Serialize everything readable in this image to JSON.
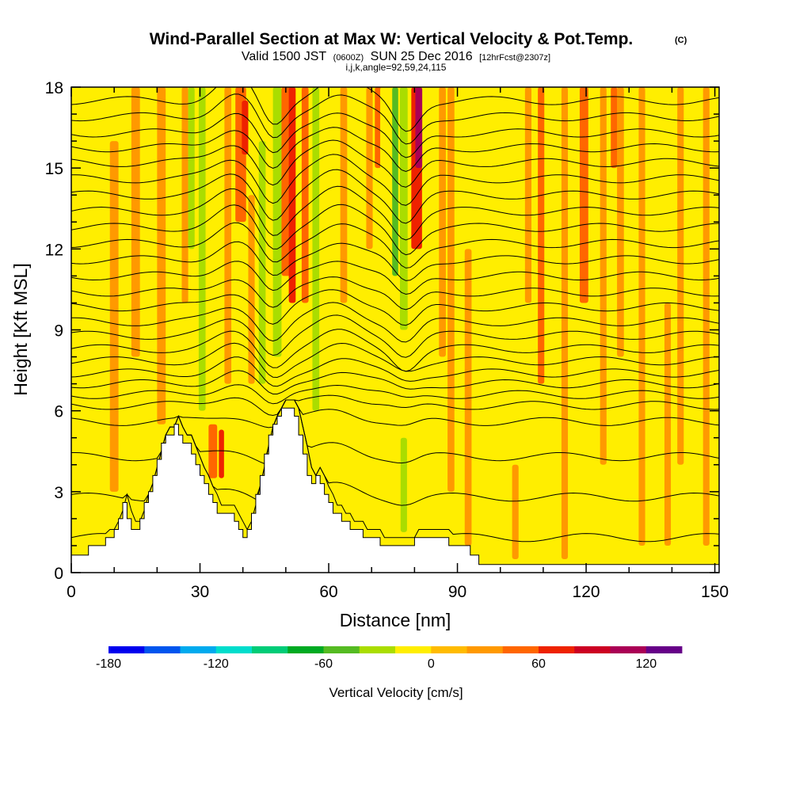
{
  "chart_data": {
    "type": "contour",
    "title": "Wind-Parallel Section at Max W: Vertical Velocity & Pot.Temp.",
    "title_mark": "(C)",
    "subtitle": {
      "valid": "Valid 1500 JST",
      "utc": "(0600Z)",
      "date": "SUN 25 Dec 2016",
      "forecast": "[12hrFcst@2307z]"
    },
    "section_info": "i,j,k,angle=92,59,24,115",
    "x_axis": {
      "label": "Distance [nm]",
      "range": [
        0,
        151
      ],
      "ticks": [
        0,
        30,
        60,
        90,
        120,
        150
      ],
      "tick_labels": [
        "0",
        "30",
        "60",
        "90",
        "120",
        "150"
      ]
    },
    "y_axis": {
      "label": "Height [Kft MSL]",
      "range": [
        0,
        18
      ],
      "ticks": [
        0,
        3,
        6,
        9,
        12,
        15,
        18
      ],
      "tick_labels": [
        "0",
        "3",
        "6",
        "9",
        "12",
        "15",
        "18"
      ]
    },
    "terrain_kft": {
      "x": [
        0,
        4,
        4,
        8,
        8,
        10,
        10,
        11,
        11,
        12,
        12,
        13,
        13,
        14,
        14,
        15,
        15,
        16,
        16,
        17,
        17,
        18,
        18,
        19,
        19,
        20,
        20,
        21,
        21,
        22,
        22,
        23,
        23,
        24,
        24,
        25,
        25,
        26,
        26,
        27,
        27,
        28,
        28,
        29,
        29,
        30,
        30,
        31,
        31,
        32,
        32,
        33,
        33,
        34,
        34,
        35,
        35,
        36,
        36,
        37,
        37,
        38,
        38,
        39,
        39,
        40,
        40,
        41,
        41,
        42,
        42,
        43,
        43,
        44,
        44,
        45,
        45,
        46,
        46,
        47,
        47,
        48,
        48,
        49,
        49,
        50,
        50,
        51,
        51,
        52,
        52,
        53,
        53,
        54,
        54,
        55,
        55,
        56,
        56,
        57,
        57,
        58,
        58,
        59,
        59,
        60,
        60,
        61,
        61,
        62,
        62,
        63,
        63,
        64,
        64,
        65,
        65,
        66,
        66,
        67,
        67,
        68,
        68,
        69,
        69,
        70,
        70,
        71,
        71,
        72,
        72,
        73,
        73,
        74,
        74,
        78,
        78,
        80,
        80,
        85,
        85,
        88,
        88,
        93,
        93,
        95,
        95,
        96,
        96,
        100,
        100,
        151
      ],
      "y": [
        0.65,
        0.65,
        1.0,
        1.0,
        1.3,
        1.3,
        1.6,
        1.6,
        2.0,
        2.0,
        2.6,
        2.6,
        2.0,
        2.0,
        1.6,
        1.6,
        1.6,
        1.6,
        2.0,
        2.0,
        2.6,
        2.6,
        3.0,
        3.0,
        3.6,
        3.6,
        4.2,
        4.2,
        4.8,
        4.8,
        5.1,
        5.1,
        5.1,
        5.1,
        5.5,
        5.5,
        5.1,
        5.1,
        4.8,
        4.8,
        4.8,
        4.8,
        4.4,
        4.4,
        4.0,
        4.0,
        3.6,
        3.6,
        3.3,
        3.3,
        2.9,
        2.9,
        2.6,
        2.6,
        2.2,
        2.2,
        2.2,
        2.2,
        2.2,
        2.2,
        2.2,
        2.2,
        1.9,
        1.9,
        1.6,
        1.6,
        1.3,
        1.3,
        1.6,
        1.6,
        2.2,
        2.2,
        2.9,
        2.9,
        3.6,
        3.6,
        4.4,
        4.4,
        5.1,
        5.1,
        5.5,
        5.5,
        5.8,
        5.8,
        6.1,
        6.1,
        6.1,
        6.1,
        6.1,
        6.1,
        5.8,
        5.8,
        5.1,
        5.1,
        4.4,
        4.4,
        3.6,
        3.6,
        3.3,
        3.3,
        3.6,
        3.6,
        3.3,
        3.3,
        2.9,
        2.9,
        2.6,
        2.6,
        2.2,
        2.2,
        2.2,
        2.2,
        1.9,
        1.9,
        1.9,
        1.9,
        1.6,
        1.6,
        1.6,
        1.6,
        1.6,
        1.6,
        1.3,
        1.3,
        1.3,
        1.3,
        1.3,
        1.3,
        1.3,
        1.3,
        1.0,
        1.0,
        1.0,
        1.0,
        1.0,
        1.0,
        1.0,
        1.0,
        1.3,
        1.3,
        1.3,
        1.3,
        1.0,
        1.0,
        0.65,
        0.65,
        0.3,
        0.3,
        0.3,
        0.3,
        0.3,
        0.3
      ]
    },
    "vertical_velocity_bands": [
      {
        "x": 10,
        "w": 2,
        "value": 20,
        "y0": 3,
        "y1": 16
      },
      {
        "x": 15,
        "w": 2,
        "value": 20,
        "y0": 8,
        "y1": 18
      },
      {
        "x": 21,
        "w": 2,
        "value": 20,
        "y0": 5.5,
        "y1": 18
      },
      {
        "x": 26.5,
        "w": 1.5,
        "value": 20,
        "y0": 10,
        "y1": 18
      },
      {
        "x": 28,
        "w": 1.5,
        "value": -40,
        "y0": 12,
        "y1": 18
      },
      {
        "x": 30.5,
        "w": 1.6,
        "value": -40,
        "y0": 6,
        "y1": 18
      },
      {
        "x": 33,
        "w": 2,
        "value": 40,
        "y0": 3.5,
        "y1": 5.5
      },
      {
        "x": 35,
        "w": 1.2,
        "value": 60,
        "y0": 3.5,
        "y1": 5.3
      },
      {
        "x": 36.5,
        "w": 1.6,
        "value": 20,
        "y0": 7,
        "y1": 18
      },
      {
        "x": 39.5,
        "w": 2.5,
        "value": 40,
        "y0": 13,
        "y1": 18
      },
      {
        "x": 40.5,
        "w": 1.5,
        "value": 60,
        "y0": 15.5,
        "y1": 17.5
      },
      {
        "x": 42,
        "w": 1.5,
        "value": 20,
        "y0": 7,
        "y1": 14
      },
      {
        "x": 44.5,
        "w": 1.6,
        "value": -40,
        "y0": 7,
        "y1": 16
      },
      {
        "x": 48,
        "w": 2,
        "value": -40,
        "y0": 8,
        "y1": 18
      },
      {
        "x": 50.5,
        "w": 3,
        "value": 40,
        "y0": 11,
        "y1": 18
      },
      {
        "x": 51.5,
        "w": 1.6,
        "value": 60,
        "y0": 10,
        "y1": 18
      },
      {
        "x": 54.5,
        "w": 1.6,
        "value": 40,
        "y0": 10,
        "y1": 18
      },
      {
        "x": 57,
        "w": 1.6,
        "value": -40,
        "y0": 6,
        "y1": 18
      },
      {
        "x": 60.5,
        "w": 1.8,
        "value": -20,
        "y0": 3,
        "y1": 18
      },
      {
        "x": 63.5,
        "w": 1.6,
        "value": 20,
        "y0": 10,
        "y1": 18
      },
      {
        "x": 66.5,
        "w": 1.6,
        "value": -20,
        "y0": 10,
        "y1": 18
      },
      {
        "x": 69.5,
        "w": 1.5,
        "value": 20,
        "y0": 12,
        "y1": 18
      },
      {
        "x": 71.5,
        "w": 1.5,
        "value": 40,
        "y0": 15,
        "y1": 18
      },
      {
        "x": 73,
        "w": 2,
        "value": -20,
        "y0": 8,
        "y1": 18
      },
      {
        "x": 75.5,
        "w": 1.4,
        "value": -60,
        "y0": 11,
        "y1": 18
      },
      {
        "x": 77.5,
        "w": 1.8,
        "value": -40,
        "y0": 9,
        "y1": 18
      },
      {
        "x": 77.5,
        "w": 1.5,
        "value": -40,
        "y0": 1.5,
        "y1": 5
      },
      {
        "x": 80.5,
        "w": 2.5,
        "value": 60,
        "y0": 12,
        "y1": 18
      },
      {
        "x": 81,
        "w": 1.6,
        "value": 100,
        "y0": 15,
        "y1": 18
      },
      {
        "x": 84,
        "w": 1.6,
        "value": -20,
        "y0": 12,
        "y1": 18
      },
      {
        "x": 86.5,
        "w": 1.6,
        "value": 20,
        "y0": 8,
        "y1": 18
      },
      {
        "x": 88.5,
        "w": 1.6,
        "value": 20,
        "y0": 3,
        "y1": 18
      },
      {
        "x": 92.5,
        "w": 1.6,
        "value": 20,
        "y0": 1,
        "y1": 12
      },
      {
        "x": 100.5,
        "w": 1.5,
        "value": -20,
        "y0": 14,
        "y1": 18
      },
      {
        "x": 103.5,
        "w": 1.5,
        "value": 20,
        "y0": 0.5,
        "y1": 4
      },
      {
        "x": 106.5,
        "w": 1.5,
        "value": 20,
        "y0": 10,
        "y1": 18
      },
      {
        "x": 108,
        "w": 1.4,
        "value": -20,
        "y0": 10,
        "y1": 16
      },
      {
        "x": 109.5,
        "w": 1.5,
        "value": 40,
        "y0": 7,
        "y1": 18
      },
      {
        "x": 111.5,
        "w": 1.5,
        "value": -20,
        "y0": 6,
        "y1": 18
      },
      {
        "x": 115,
        "w": 1.5,
        "value": 20,
        "y0": 0.5,
        "y1": 18
      },
      {
        "x": 119.5,
        "w": 2,
        "value": 40,
        "y0": 10,
        "y1": 18
      },
      {
        "x": 121.5,
        "w": 1.5,
        "value": -20,
        "y0": 12,
        "y1": 18
      },
      {
        "x": 124,
        "w": 1.5,
        "value": 20,
        "y0": 4,
        "y1": 18
      },
      {
        "x": 126.5,
        "w": 1.5,
        "value": 40,
        "y0": 15,
        "y1": 18
      },
      {
        "x": 128,
        "w": 1.6,
        "value": 20,
        "y0": 8,
        "y1": 18
      },
      {
        "x": 130.5,
        "w": 1.5,
        "value": -20,
        "y0": 12,
        "y1": 18
      },
      {
        "x": 133,
        "w": 1.5,
        "value": 20,
        "y0": 1,
        "y1": 18
      },
      {
        "x": 138.5,
        "w": 1.5,
        "value": -20,
        "y0": 14,
        "y1": 18
      },
      {
        "x": 139,
        "w": 1.5,
        "value": 20,
        "y0": 1,
        "y1": 10
      },
      {
        "x": 142,
        "w": 1.5,
        "value": 20,
        "y0": 4,
        "y1": 18
      },
      {
        "x": 145,
        "w": 1.5,
        "value": -20,
        "y0": 6,
        "y1": 18
      },
      {
        "x": 148,
        "w": 1.5,
        "value": 20,
        "y0": 1,
        "y1": 18
      }
    ],
    "isentrope_base_kft": [
      1.3,
      2.8,
      4.3,
      5.6,
      6.2,
      6.6,
      7.0,
      7.4,
      7.85,
      8.3,
      8.8,
      9.3,
      9.85,
      10.4,
      11.0,
      11.6,
      12.2,
      12.8,
      13.4,
      14.0,
      14.6,
      15.2,
      15.75,
      16.3,
      16.9,
      17.5
    ],
    "colorbar": {
      "label": "Vertical Velocity [cm/s]",
      "min": -180,
      "max": 140,
      "step": 20,
      "tick_values": [
        -180,
        -120,
        -60,
        0,
        60,
        120
      ],
      "tick_labels": [
        "-180",
        "-120",
        "-60",
        "0",
        "60",
        "120"
      ],
      "colors": [
        "#0000ee",
        "#0055ee",
        "#00aaee",
        "#00ddcc",
        "#00cc77",
        "#00aa22",
        "#55bb22",
        "#aadd00",
        "#ffee00",
        "#ffbb00",
        "#ff9900",
        "#ff6600",
        "#ee2200",
        "#cc0022",
        "#aa0055",
        "#660088"
      ]
    }
  }
}
